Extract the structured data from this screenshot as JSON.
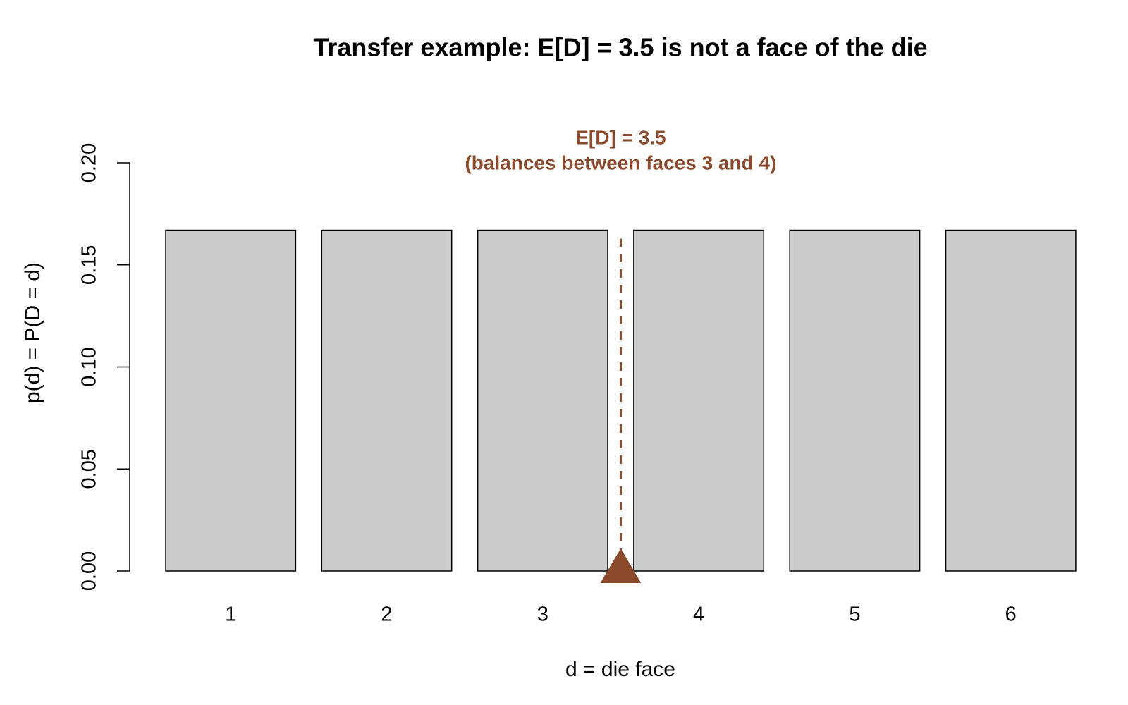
{
  "chart_data": {
    "type": "bar",
    "title": "Transfer example: E[D] = 3.5 is not a face of the die",
    "x_label": "d = die face",
    "y_label": "p(d) = P(D = d)",
    "categories": [
      "1",
      "2",
      "3",
      "4",
      "5",
      "6"
    ],
    "values": [
      0.167,
      0.167,
      0.167,
      0.167,
      0.167,
      0.167
    ],
    "color": "#cccccc",
    "ylim": [
      0,
      0.2
    ],
    "yticks": [
      {
        "value": 0,
        "label": "0.00"
      },
      {
        "value": 0.05,
        "label": "0.05"
      },
      {
        "value": 0.1,
        "label": "0.10"
      },
      {
        "value": 0.15,
        "label": "0.15"
      },
      {
        "value": 0.2,
        "label": "0.20"
      }
    ],
    "grid": false,
    "mean": 3.5,
    "mean_color": "#8b4a2b",
    "annotations": [
      "E[D] = 3.5",
      "(balances between faces 3 and 4)"
    ]
  }
}
